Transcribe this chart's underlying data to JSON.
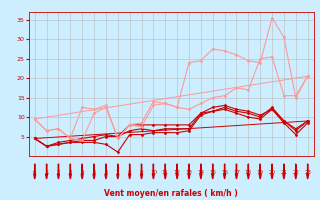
{
  "background_color": "#cceeff",
  "grid_color": "#bbbbbb",
  "xlabel": "Vent moyen/en rafales ( km/h )",
  "xlabel_color": "#cc0000",
  "tick_color": "#cc0000",
  "xlim": [
    -0.5,
    23.5
  ],
  "ylim": [
    0,
    37
  ],
  "yticks": [
    5,
    10,
    15,
    20,
    25,
    30,
    35
  ],
  "xticks": [
    0,
    1,
    2,
    3,
    4,
    5,
    6,
    7,
    8,
    9,
    10,
    11,
    12,
    13,
    14,
    15,
    16,
    17,
    18,
    19,
    20,
    21,
    22,
    23
  ],
  "series": [
    {
      "x": [
        0,
        1,
        2,
        3,
        4,
        5,
        6,
        7,
        8,
        9,
        10,
        11,
        12,
        13,
        14,
        15,
        16,
        17,
        18,
        19,
        20,
        21,
        22,
        23
      ],
      "y": [
        4.5,
        2.5,
        3.0,
        3.5,
        3.5,
        3.5,
        3.0,
        1.0,
        5.5,
        5.5,
        6.0,
        6.0,
        6.0,
        6.5,
        10.5,
        11.5,
        12.0,
        11.0,
        10.0,
        9.5,
        12.0,
        8.5,
        5.5,
        8.5
      ],
      "color": "#cc0000",
      "lw": 0.8,
      "marker": "D",
      "ms": 1.5,
      "alpha": 1.0
    },
    {
      "x": [
        0,
        1,
        2,
        3,
        4,
        5,
        6,
        7,
        8,
        9,
        10,
        11,
        12,
        13,
        14,
        15,
        16,
        17,
        18,
        19,
        20,
        21,
        22,
        23
      ],
      "y": [
        4.5,
        2.5,
        3.0,
        3.5,
        4.0,
        4.0,
        5.0,
        5.0,
        6.5,
        7.0,
        6.5,
        7.0,
        7.0,
        7.0,
        11.0,
        11.5,
        12.5,
        11.5,
        11.0,
        10.0,
        12.5,
        9.0,
        6.5,
        9.0
      ],
      "color": "#cc0000",
      "lw": 0.8,
      "marker": "D",
      "ms": 1.5,
      "alpha": 1.0
    },
    {
      "x": [
        0,
        1,
        2,
        3,
        4,
        5,
        6,
        7,
        8,
        9,
        10,
        11,
        12,
        13,
        14,
        15,
        16,
        17,
        18,
        19,
        20,
        21,
        22,
        23
      ],
      "y": [
        4.5,
        2.5,
        3.5,
        4.0,
        4.5,
        5.0,
        5.5,
        5.0,
        8.0,
        8.0,
        8.0,
        8.0,
        8.0,
        8.0,
        11.0,
        12.5,
        13.0,
        12.0,
        11.5,
        10.5,
        12.0,
        9.0,
        7.0,
        9.0
      ],
      "color": "#cc0000",
      "lw": 0.8,
      "marker": "D",
      "ms": 1.5,
      "alpha": 1.0
    },
    {
      "x": [
        0,
        23
      ],
      "y": [
        4.5,
        9.0
      ],
      "color": "#cc0000",
      "lw": 0.7,
      "marker": null,
      "ms": 0,
      "alpha": 1.0
    },
    {
      "x": [
        0,
        1,
        2,
        3,
        4,
        5,
        6,
        7,
        8,
        9,
        10,
        11,
        12,
        13,
        14,
        15,
        16,
        17,
        18,
        19,
        20,
        21,
        22,
        23
      ],
      "y": [
        9.5,
        6.5,
        7.0,
        4.5,
        4.0,
        11.0,
        12.5,
        4.5,
        8.0,
        7.5,
        13.0,
        13.5,
        12.5,
        12.0,
        13.5,
        15.0,
        15.5,
        17.5,
        17.0,
        25.0,
        25.5,
        15.5,
        15.5,
        20.5
      ],
      "color": "#ff9999",
      "lw": 0.8,
      "marker": "D",
      "ms": 1.5,
      "alpha": 1.0
    },
    {
      "x": [
        0,
        1,
        2,
        3,
        4,
        5,
        6,
        7,
        8,
        9,
        10,
        11,
        12,
        13,
        14,
        15,
        16,
        17,
        18,
        19,
        20,
        21,
        22,
        23
      ],
      "y": [
        9.5,
        6.5,
        7.0,
        4.5,
        12.5,
        12.0,
        13.0,
        4.5,
        8.0,
        8.5,
        14.0,
        13.5,
        12.5,
        24.0,
        24.5,
        27.5,
        27.0,
        26.0,
        24.5,
        24.0,
        35.5,
        30.5,
        15.0,
        20.5
      ],
      "color": "#ff9999",
      "lw": 0.8,
      "marker": "D",
      "ms": 1.5,
      "alpha": 1.0
    },
    {
      "x": [
        0,
        23
      ],
      "y": [
        9.5,
        20.5
      ],
      "color": "#ff9999",
      "lw": 0.7,
      "marker": null,
      "ms": 0,
      "alpha": 1.0
    }
  ],
  "arrow_color": "#cc0000"
}
